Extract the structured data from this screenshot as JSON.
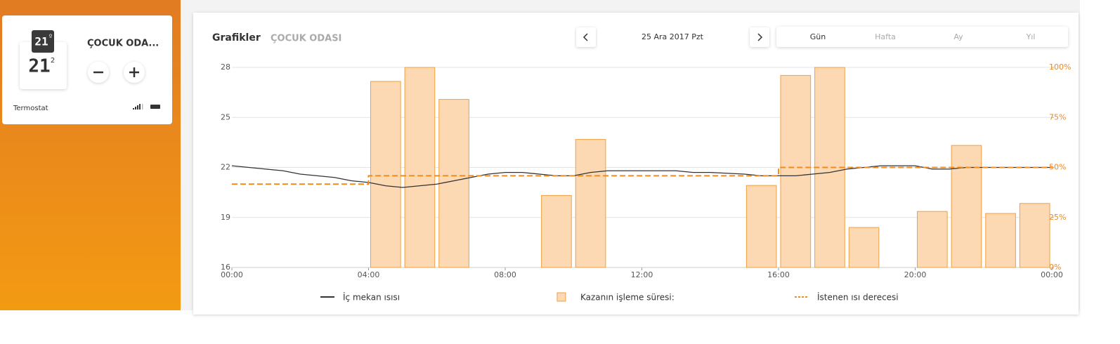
{
  "device": {
    "setpoint": "21",
    "setpoint_mark": "º",
    "temperature": "21",
    "temperature_decimal": "2",
    "room": "ÇOCUK ODA...",
    "type": "Termostat"
  },
  "header": {
    "title": "Grafikler",
    "room": "ÇOCUK ODASI",
    "date": "25 Ara 2017 Pzt"
  },
  "tabs": {
    "items": [
      "Gün",
      "Hafta",
      "Ay",
      "Yıl"
    ],
    "active": 0
  },
  "chart_data": {
    "type": "combo",
    "xlim": [
      0,
      24
    ],
    "xticks": [
      {
        "value": 0,
        "label": "00:00"
      },
      {
        "value": 4,
        "label": "04:00"
      },
      {
        "value": 8,
        "label": "08:00"
      },
      {
        "value": 12,
        "label": "12:00"
      },
      {
        "value": 16,
        "label": "16:00"
      },
      {
        "value": 20,
        "label": "20:00"
      },
      {
        "value": 24,
        "label": "00:00"
      }
    ],
    "ylim": [
      16,
      28
    ],
    "yticks": [
      16,
      19,
      22,
      25,
      28
    ],
    "y2lim": [
      0,
      100
    ],
    "y2ticks": [
      {
        "value": 0,
        "label": "0%"
      },
      {
        "value": 25,
        "label": "25%"
      },
      {
        "value": 50,
        "label": "50%"
      },
      {
        "value": 75,
        "label": "75%"
      },
      {
        "value": 100,
        "label": "100%"
      }
    ],
    "grid": true,
    "series": [
      {
        "name": "İç mekan ısısı",
        "kind": "line",
        "color": "#333333",
        "x": [
          0,
          0.5,
          1,
          1.5,
          2,
          2.5,
          3,
          3.5,
          4,
          4.5,
          5,
          5.5,
          6,
          6.5,
          7,
          7.5,
          8,
          8.5,
          9,
          9.5,
          10,
          10.5,
          11,
          12,
          13,
          13.5,
          14,
          15,
          15.5,
          16,
          16.5,
          17,
          17.5,
          18,
          18.5,
          19,
          20,
          20.5,
          21,
          21.5,
          22,
          23,
          24
        ],
        "values": [
          22.1,
          22.0,
          21.9,
          21.8,
          21.6,
          21.5,
          21.4,
          21.2,
          21.1,
          20.9,
          20.8,
          20.9,
          21.0,
          21.2,
          21.4,
          21.6,
          21.7,
          21.7,
          21.6,
          21.5,
          21.5,
          21.7,
          21.8,
          21.8,
          21.8,
          21.7,
          21.7,
          21.6,
          21.5,
          21.5,
          21.5,
          21.6,
          21.7,
          21.9,
          22.0,
          22.1,
          22.1,
          21.9,
          21.9,
          22.0,
          22.0,
          22.0,
          22.0
        ]
      },
      {
        "name": "Kazanın işleme süresi:",
        "kind": "bar",
        "axis": "y2",
        "color": "#f0a040",
        "fill": "#fdd9b3",
        "x": [
          4,
          5,
          6,
          9,
          10,
          15,
          16,
          17,
          18,
          20,
          21,
          22,
          23
        ],
        "values": [
          93,
          100,
          84,
          36,
          64,
          41,
          96,
          100,
          20,
          28,
          61,
          27,
          32
        ]
      },
      {
        "name": "İstenen ısı derecesi",
        "kind": "dashed",
        "color": "#f08c1e",
        "x": [
          0,
          4,
          4,
          16,
          16,
          24
        ],
        "values": [
          21,
          21,
          21.5,
          21.5,
          22,
          22
        ]
      }
    ]
  }
}
